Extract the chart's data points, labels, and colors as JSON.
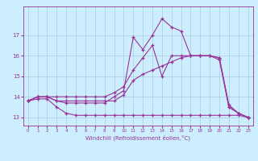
{
  "title": "",
  "xlabel": "Windchill (Refroidissement éolien,°C)",
  "ylabel": "",
  "bg_color": "#cceeff",
  "line_color": "#993399",
  "grid_color": "#aaccdd",
  "xlim": [
    -0.5,
    23.5
  ],
  "ylim": [
    12.6,
    18.5
  ],
  "yticks": [
    13,
    14,
    15,
    16,
    17
  ],
  "ytick_labels": [
    "13",
    "14",
    "15",
    "16",
    "17"
  ],
  "xticks": [
    0,
    1,
    2,
    3,
    4,
    5,
    6,
    7,
    8,
    9,
    10,
    11,
    12,
    13,
    14,
    15,
    16,
    17,
    18,
    19,
    20,
    21,
    22,
    23
  ],
  "series1_x": [
    0,
    1,
    2,
    3,
    4,
    5,
    6,
    7,
    8,
    9,
    10,
    11,
    12,
    13,
    14,
    15,
    16,
    17,
    18,
    19,
    20,
    21,
    22,
    23
  ],
  "series1_y": [
    13.8,
    13.9,
    13.9,
    13.5,
    13.2,
    13.1,
    13.1,
    13.1,
    13.1,
    13.1,
    13.1,
    13.1,
    13.1,
    13.1,
    13.1,
    13.1,
    13.1,
    13.1,
    13.1,
    13.1,
    13.1,
    13.1,
    13.1,
    13.0
  ],
  "series2_x": [
    0,
    1,
    2,
    3,
    4,
    5,
    6,
    7,
    8,
    9,
    10,
    11,
    12,
    13,
    14,
    15,
    16,
    17,
    18,
    19,
    20,
    21,
    22,
    23
  ],
  "series2_y": [
    13.8,
    14.0,
    14.0,
    13.8,
    13.8,
    13.8,
    13.8,
    13.8,
    13.8,
    13.8,
    14.1,
    14.8,
    15.1,
    15.3,
    15.5,
    15.7,
    15.9,
    16.0,
    16.0,
    16.0,
    15.8,
    13.5,
    13.2,
    13.0
  ],
  "series3_x": [
    0,
    1,
    2,
    3,
    4,
    5,
    6,
    7,
    8,
    9,
    10,
    11,
    12,
    13,
    14,
    15,
    16,
    17,
    18,
    19,
    20,
    21,
    22,
    23
  ],
  "series3_y": [
    13.8,
    14.0,
    14.0,
    14.0,
    14.0,
    14.0,
    14.0,
    14.0,
    14.0,
    14.2,
    14.5,
    15.3,
    15.9,
    16.5,
    15.0,
    16.0,
    16.0,
    16.0,
    16.0,
    16.0,
    15.9,
    13.5,
    13.2,
    13.0
  ],
  "series4_x": [
    0,
    1,
    2,
    3,
    4,
    5,
    6,
    7,
    8,
    9,
    10,
    11,
    12,
    13,
    14,
    15,
    16,
    17,
    18,
    19,
    20,
    21,
    22,
    23
  ],
  "series4_y": [
    13.8,
    14.0,
    14.0,
    13.8,
    13.7,
    13.7,
    13.7,
    13.7,
    13.7,
    14.0,
    14.3,
    16.9,
    16.3,
    17.0,
    17.8,
    17.4,
    17.2,
    16.0,
    16.0,
    16.0,
    15.9,
    13.6,
    13.2,
    13.0
  ]
}
